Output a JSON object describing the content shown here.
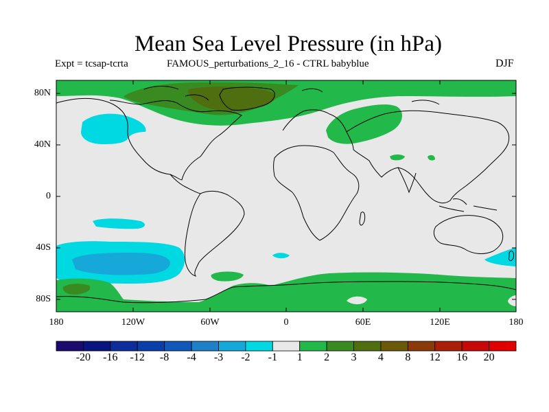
{
  "title": "Mean Sea Level Pressure (in hPa)",
  "subtitle": {
    "experiment": "Expt = tcsap-tcrta",
    "perturbation": "FAMOUS_perturbations_2_16 - CTRL babyblue",
    "season": "DJF"
  },
  "axes": {
    "lat_ticks": [
      "80N",
      "40N",
      "0",
      "40S",
      "80S"
    ],
    "lon_ticks": [
      "180",
      "120W",
      "60W",
      "0",
      "60E",
      "120E",
      "180"
    ]
  },
  "colorbar": {
    "labels": [
      "-20",
      "-16",
      "-12",
      "-8",
      "-4",
      "-3",
      "-2",
      "-1",
      "1",
      "2",
      "3",
      "4",
      "8",
      "12",
      "16",
      "20"
    ],
    "colors": [
      "#1c0a6e",
      "#0a1480",
      "#0c2d9a",
      "#0a3fa8",
      "#1059b8",
      "#1d80c8",
      "#16a8d8",
      "#00d8e2",
      "#e8e8e8",
      "#22b84a",
      "#3a8a22",
      "#4f6e10",
      "#6b5808",
      "#8a3a08",
      "#a82008",
      "#c80808",
      "#e00000"
    ]
  },
  "colors": {
    "land_fill": "#e8e8e8",
    "neg_light": "#00d8e2",
    "neg_mid": "#16a8d8",
    "pos_light": "#22b84a",
    "pos_mid": "#3a8a22",
    "pos_dark": "#4f6e10"
  }
}
